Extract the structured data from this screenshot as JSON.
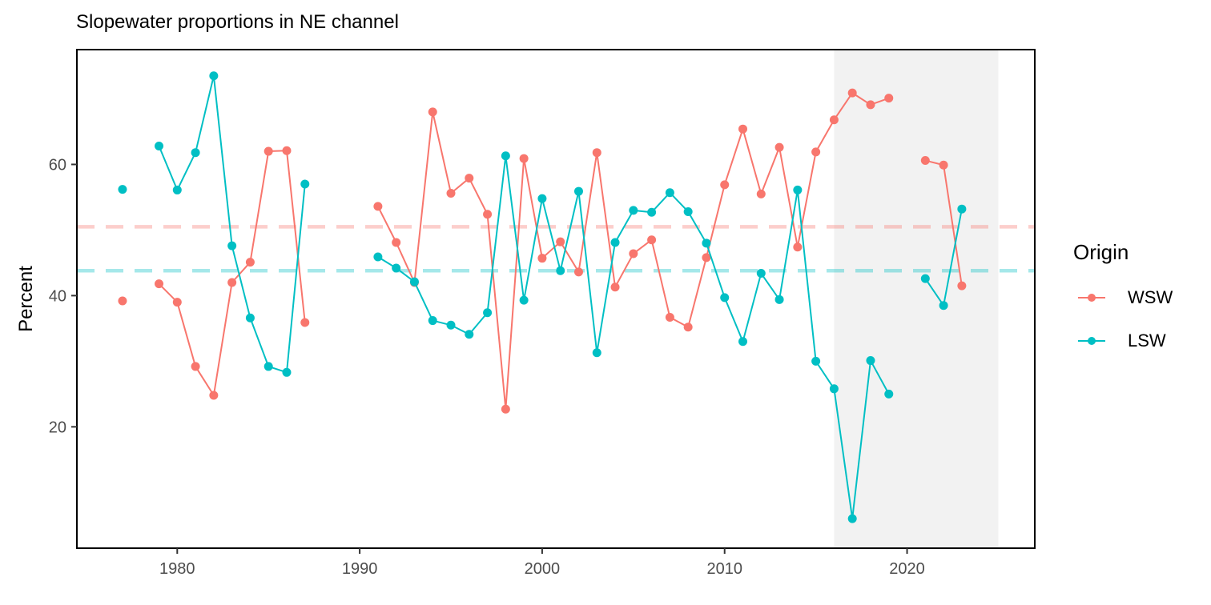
{
  "chart_data": {
    "type": "line",
    "title": "Slopewater proportions in NE channel",
    "xlabel": "",
    "ylabel": "Percent",
    "xlim": [
      1974.5,
      2027
    ],
    "ylim": [
      1.5,
      77.5
    ],
    "x_ticks": [
      1980,
      1990,
      2000,
      2010,
      2020
    ],
    "y_ticks": [
      20,
      40,
      60
    ],
    "grid": false,
    "legend": {
      "title": "Origin",
      "position": "right"
    },
    "shaded_region": {
      "x": [
        2016,
        2025
      ],
      "color": "#f2f2f2"
    },
    "reference_lines": [
      {
        "series": "WSW",
        "y": 50.5,
        "color": "#f8766d",
        "style": "dashed"
      },
      {
        "series": "LSW",
        "y": 43.8,
        "color": "#00bfc4",
        "style": "dashed"
      }
    ],
    "series": [
      {
        "name": "WSW",
        "color": "#f8766d",
        "points": [
          [
            1977,
            39.2
          ],
          [
            1979,
            41.8
          ],
          [
            1980,
            39.0
          ],
          [
            1981,
            29.2
          ],
          [
            1982,
            24.8
          ],
          [
            1983,
            42.0
          ],
          [
            1984,
            45.1
          ],
          [
            1985,
            62.0
          ],
          [
            1986,
            62.1
          ],
          [
            1987,
            35.9
          ],
          [
            1991,
            53.6
          ],
          [
            1992,
            48.1
          ],
          [
            1993,
            42.0
          ],
          [
            1994,
            68.0
          ],
          [
            1995,
            55.6
          ],
          [
            1996,
            57.9
          ],
          [
            1997,
            52.4
          ],
          [
            1998,
            22.7
          ],
          [
            1999,
            60.9
          ],
          [
            2000,
            45.7
          ],
          [
            2001,
            48.2
          ],
          [
            2002,
            43.6
          ],
          [
            2003,
            61.8
          ],
          [
            2004,
            41.3
          ],
          [
            2005,
            46.4
          ],
          [
            2006,
            48.5
          ],
          [
            2007,
            36.7
          ],
          [
            2008,
            35.2
          ],
          [
            2009,
            45.8
          ],
          [
            2010,
            56.9
          ],
          [
            2011,
            65.4
          ],
          [
            2012,
            55.5
          ],
          [
            2013,
            62.6
          ],
          [
            2014,
            47.4
          ],
          [
            2015,
            61.9
          ],
          [
            2016,
            66.8
          ],
          [
            2017,
            70.9
          ],
          [
            2018,
            69.1
          ],
          [
            2019,
            70.1
          ],
          [
            2021,
            60.6
          ],
          [
            2022,
            59.9
          ],
          [
            2023,
            41.5
          ]
        ]
      },
      {
        "name": "LSW",
        "color": "#00bfc4",
        "points": [
          [
            1977,
            56.2
          ],
          [
            1979,
            62.8
          ],
          [
            1980,
            56.1
          ],
          [
            1981,
            61.8
          ],
          [
            1982,
            73.5
          ],
          [
            1983,
            47.6
          ],
          [
            1984,
            36.6
          ],
          [
            1985,
            29.2
          ],
          [
            1986,
            28.3
          ],
          [
            1987,
            57.0
          ],
          [
            1991,
            45.9
          ],
          [
            1992,
            44.2
          ],
          [
            1993,
            42.1
          ],
          [
            1994,
            36.2
          ],
          [
            1995,
            35.5
          ],
          [
            1996,
            34.1
          ],
          [
            1997,
            37.4
          ],
          [
            1998,
            61.3
          ],
          [
            1999,
            39.3
          ],
          [
            2000,
            54.8
          ],
          [
            2001,
            43.8
          ],
          [
            2002,
            55.9
          ],
          [
            2003,
            31.3
          ],
          [
            2004,
            48.1
          ],
          [
            2005,
            53.0
          ],
          [
            2006,
            52.7
          ],
          [
            2007,
            55.7
          ],
          [
            2008,
            52.8
          ],
          [
            2009,
            48.0
          ],
          [
            2010,
            39.7
          ],
          [
            2011,
            33.0
          ],
          [
            2012,
            43.4
          ],
          [
            2013,
            39.4
          ],
          [
            2014,
            56.1
          ],
          [
            2015,
            30.0
          ],
          [
            2016,
            25.8
          ],
          [
            2017,
            6.0
          ],
          [
            2018,
            30.1
          ],
          [
            2019,
            25.0
          ],
          [
            2021,
            42.6
          ],
          [
            2022,
            38.5
          ],
          [
            2023,
            53.2
          ]
        ]
      }
    ]
  }
}
